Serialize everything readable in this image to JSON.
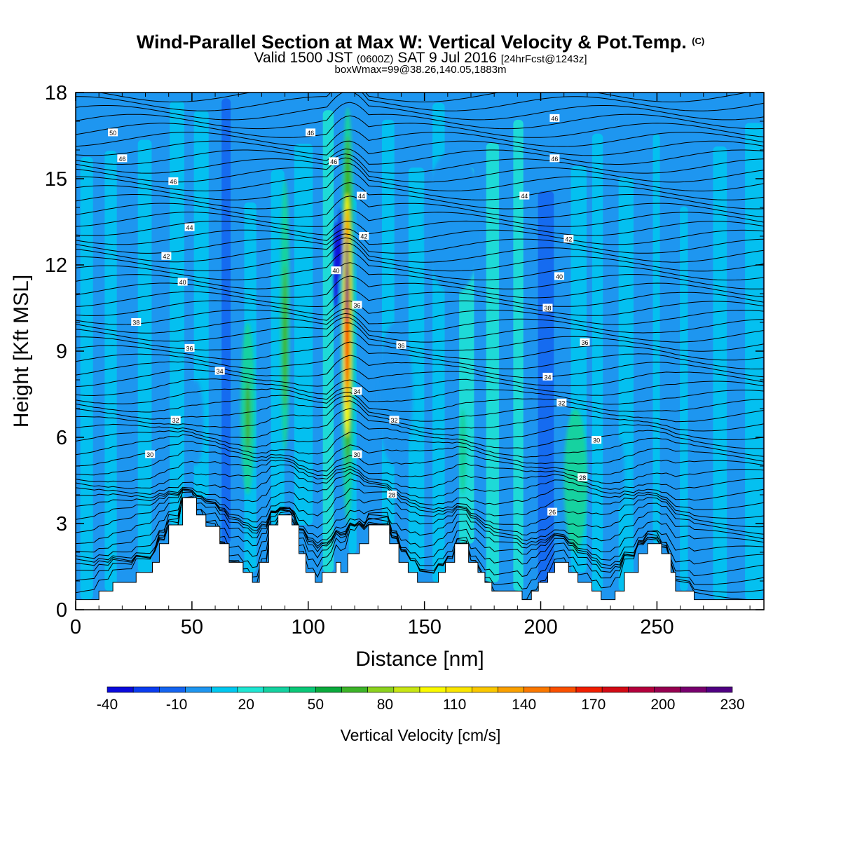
{
  "header": {
    "title": "Wind-Parallel Section at Max W: Vertical Velocity & Pot.Temp.",
    "title_mark": "(C)",
    "subtitle_a": "Valid 1500 JST",
    "subtitle_b": "(0600Z)",
    "subtitle_c": "SAT 9 Jul 2016",
    "subtitle_d": "[24hrFcst@1243z]",
    "boxline": "boxWmax=99@38.26,140.05,1883m"
  },
  "chart_data": {
    "type": "contour",
    "xlabel": "Distance [nm]",
    "ylabel": "Height [Kft MSL]",
    "xlim": [
      0,
      296
    ],
    "ylim": [
      0,
      18
    ],
    "xticks": [
      0,
      50,
      100,
      150,
      200,
      250
    ],
    "yticks": [
      0,
      3,
      6,
      9,
      12,
      15,
      18
    ],
    "colorbar": {
      "label": "Vertical Velocity [cm/s]",
      "tick_labels": [
        "-40",
        "-10",
        "20",
        "50",
        "80",
        "110",
        "140",
        "170",
        "200",
        "230"
      ],
      "tick_values": [
        -40,
        -10,
        20,
        50,
        80,
        110,
        140,
        170,
        200,
        230
      ],
      "colors": [
        "#0a0adc",
        "#0a3cf0",
        "#1464f0",
        "#1e96f0",
        "#00c8f0",
        "#1ee6d2",
        "#14d2a0",
        "#0ac878",
        "#0aaa3c",
        "#3cb428",
        "#8cd21e",
        "#c8e614",
        "#fafa00",
        "#fae600",
        "#fac800",
        "#faa000",
        "#fa7800",
        "#fa5000",
        "#f01e00",
        "#d20a14",
        "#b4003c",
        "#960050",
        "#78006e",
        "#500082"
      ]
    },
    "terrain": [
      [
        0,
        0.35
      ],
      [
        10,
        0.35
      ],
      [
        10,
        0.65
      ],
      [
        16,
        0.65
      ],
      [
        16,
        0.95
      ],
      [
        26,
        0.95
      ],
      [
        26,
        1.3
      ],
      [
        33,
        1.3
      ],
      [
        33,
        1.65
      ],
      [
        36,
        1.65
      ],
      [
        36,
        2.3
      ],
      [
        40,
        2.3
      ],
      [
        40,
        2.95
      ],
      [
        46,
        2.95
      ],
      [
        46,
        3.9
      ],
      [
        52,
        3.9
      ],
      [
        52,
        3.3
      ],
      [
        56,
        3.3
      ],
      [
        56,
        2.9
      ],
      [
        62,
        2.9
      ],
      [
        62,
        2.3
      ],
      [
        66,
        2.3
      ],
      [
        66,
        1.65
      ],
      [
        72,
        1.65
      ],
      [
        72,
        1.3
      ],
      [
        76,
        1.3
      ],
      [
        76,
        0.95
      ],
      [
        79,
        0.95
      ],
      [
        79,
        1.65
      ],
      [
        83,
        1.65
      ],
      [
        83,
        2.95
      ],
      [
        87,
        2.95
      ],
      [
        87,
        3.3
      ],
      [
        93,
        3.3
      ],
      [
        93,
        2.95
      ],
      [
        96,
        2.95
      ],
      [
        96,
        1.95
      ],
      [
        99,
        1.95
      ],
      [
        99,
        1.3
      ],
      [
        103,
        1.3
      ],
      [
        103,
        0.95
      ],
      [
        106,
        0.95
      ],
      [
        106,
        1.3
      ],
      [
        112,
        1.3
      ],
      [
        112,
        1.65
      ],
      [
        114,
        1.65
      ],
      [
        114,
        1.3
      ],
      [
        117,
        1.3
      ],
      [
        117,
        1.95
      ],
      [
        122,
        1.95
      ],
      [
        122,
        2.3
      ],
      [
        126,
        2.3
      ],
      [
        126,
        2.95
      ],
      [
        135,
        2.95
      ],
      [
        135,
        2.3
      ],
      [
        139,
        2.3
      ],
      [
        139,
        1.65
      ],
      [
        143,
        1.65
      ],
      [
        143,
        1.3
      ],
      [
        147,
        1.3
      ],
      [
        147,
        0.95
      ],
      [
        156,
        0.95
      ],
      [
        156,
        1.3
      ],
      [
        159,
        1.3
      ],
      [
        159,
        1.65
      ],
      [
        163,
        1.65
      ],
      [
        163,
        2.3
      ],
      [
        169,
        2.3
      ],
      [
        169,
        1.65
      ],
      [
        173,
        1.65
      ],
      [
        173,
        1.3
      ],
      [
        176,
        1.3
      ],
      [
        176,
        0.95
      ],
      [
        179,
        0.95
      ],
      [
        179,
        0.65
      ],
      [
        192,
        0.65
      ],
      [
        192,
        0.35
      ],
      [
        196,
        0.35
      ],
      [
        196,
        0.65
      ],
      [
        199,
        0.65
      ],
      [
        199,
        0.95
      ],
      [
        203,
        0.95
      ],
      [
        203,
        1.3
      ],
      [
        206,
        1.3
      ],
      [
        206,
        1.65
      ],
      [
        212,
        1.65
      ],
      [
        212,
        1.3
      ],
      [
        216,
        1.3
      ],
      [
        216,
        0.95
      ],
      [
        222,
        0.95
      ],
      [
        222,
        0.65
      ],
      [
        226,
        0.65
      ],
      [
        226,
        0.35
      ],
      [
        232,
        0.35
      ],
      [
        232,
        0.65
      ],
      [
        236,
        0.65
      ],
      [
        236,
        1.3
      ],
      [
        242,
        1.3
      ],
      [
        242,
        1.95
      ],
      [
        246,
        1.95
      ],
      [
        246,
        2.3
      ],
      [
        252,
        2.3
      ],
      [
        252,
        1.95
      ],
      [
        256,
        1.95
      ],
      [
        256,
        1.3
      ],
      [
        258,
        1.3
      ],
      [
        258,
        0.65
      ],
      [
        266,
        0.65
      ],
      [
        266,
        0.35
      ],
      [
        296,
        0.35
      ]
    ],
    "w_cells": [
      [
        116,
        117.5,
        7,
        14,
        140
      ],
      [
        116,
        117.5,
        10,
        13,
        200
      ],
      [
        115,
        119,
        5,
        16.5,
        50
      ],
      [
        114,
        120,
        3,
        17.5,
        20
      ],
      [
        115.5,
        118,
        7.5,
        12.5,
        110
      ],
      [
        115,
        118.5,
        6,
        14.5,
        80
      ],
      [
        111,
        113,
        10.5,
        13.5,
        -40
      ],
      [
        113,
        115,
        11.5,
        14,
        -40
      ],
      [
        119,
        121,
        11.5,
        14,
        -10
      ],
      [
        88,
        92,
        5.5,
        15,
        20
      ],
      [
        89,
        91,
        7,
        12,
        50
      ],
      [
        71,
        77,
        4,
        10,
        20
      ],
      [
        73,
        75,
        5.5,
        8,
        50
      ],
      [
        130,
        145,
        5,
        10,
        -10
      ],
      [
        48,
        55,
        5,
        8,
        -10
      ],
      [
        165,
        168,
        4,
        7,
        20
      ],
      [
        232,
        236,
        3.5,
        6,
        -10
      ],
      [
        240,
        247,
        2,
        6.5,
        -10
      ],
      [
        210,
        220,
        2,
        7,
        20
      ],
      [
        150,
        175,
        11,
        16,
        -10
      ]
    ],
    "theta_labels": [
      "50",
      "46",
      "46",
      "44",
      "42",
      "40",
      "38",
      "36",
      "34",
      "32",
      "30",
      "46",
      "46",
      "44",
      "42",
      "40",
      "36",
      "36",
      "34",
      "32",
      "30",
      "28",
      "46",
      "46",
      "44",
      "42",
      "40",
      "38",
      "36",
      "34",
      "32",
      "30",
      "28",
      "26"
    ]
  }
}
